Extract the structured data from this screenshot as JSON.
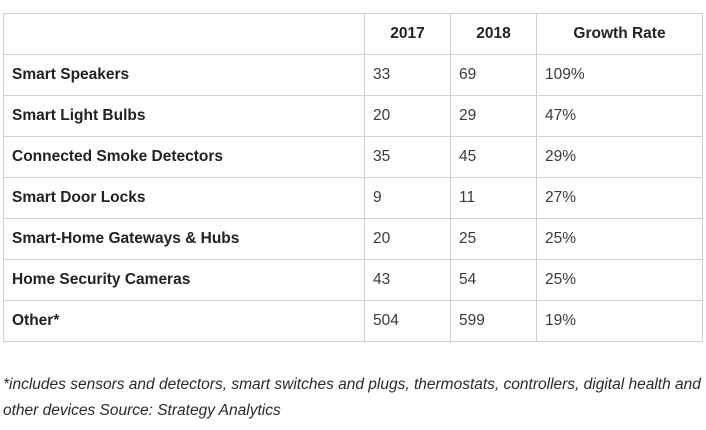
{
  "table": {
    "headers": [
      "",
      "2017",
      "2018",
      "Growth Rate"
    ],
    "rows": [
      [
        "Smart Speakers",
        "33",
        "69",
        "109%"
      ],
      [
        "Smart Light Bulbs",
        "20",
        "29",
        "47%"
      ],
      [
        "Connected Smoke Detectors",
        "35",
        "45",
        "29%"
      ],
      [
        "Smart Door Locks",
        "9",
        "11",
        "27%"
      ],
      [
        "Smart-Home Gateways & Hubs",
        "20",
        "25",
        "25%"
      ],
      [
        "Home Security Cameras",
        "43",
        "54",
        "25%"
      ],
      [
        "Other*",
        "504",
        "599",
        "19%"
      ]
    ]
  },
  "footnote": "*includes sensors and detectors, smart switches and plugs, thermostats, controllers, digital health and other devices Source: Strategy Analytics"
}
